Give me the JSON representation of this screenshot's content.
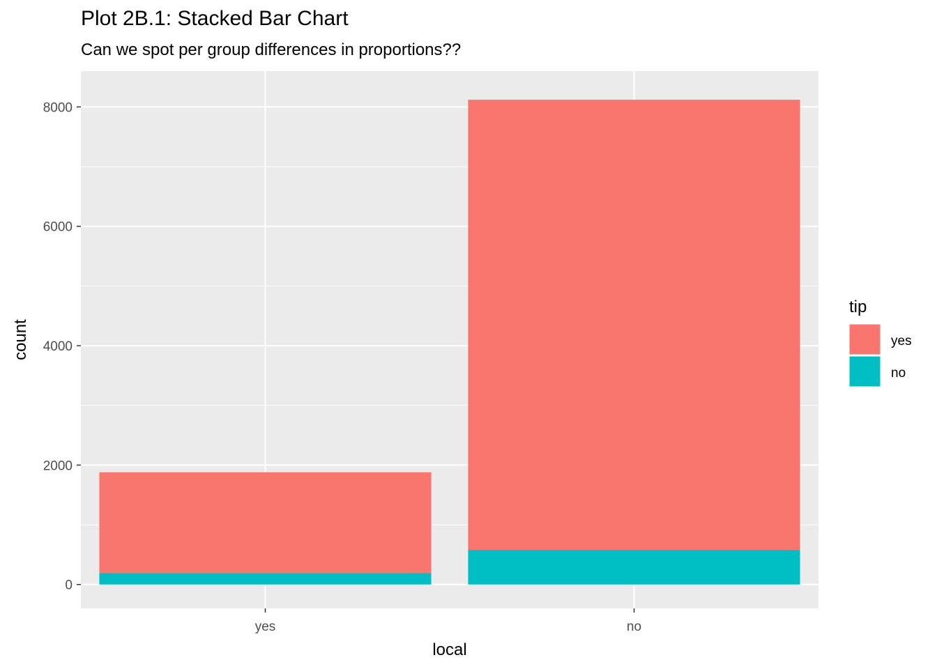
{
  "chart_data": {
    "type": "bar",
    "stacked": true,
    "title": "Plot 2B.1: Stacked Bar Chart",
    "subtitle": "Can we spot per group differences in proportions??",
    "xlabel": "local",
    "ylabel": "count",
    "categories": [
      "yes",
      "no"
    ],
    "ylim": [
      -400,
      8600
    ],
    "yticks": [
      0,
      2000,
      4000,
      6000,
      8000
    ],
    "grid": true,
    "legend": {
      "title": "tip",
      "placement": "right"
    },
    "series": [
      {
        "name": "no",
        "color": "#00BFC4",
        "values": [
          190,
          580
        ]
      },
      {
        "name": "yes",
        "color": "#F8766D",
        "values": [
          1690,
          7540
        ]
      }
    ],
    "legend_order": [
      "yes",
      "no"
    ],
    "panel_background": "#EBEBEB",
    "grid_color": "#FFFFFF"
  }
}
